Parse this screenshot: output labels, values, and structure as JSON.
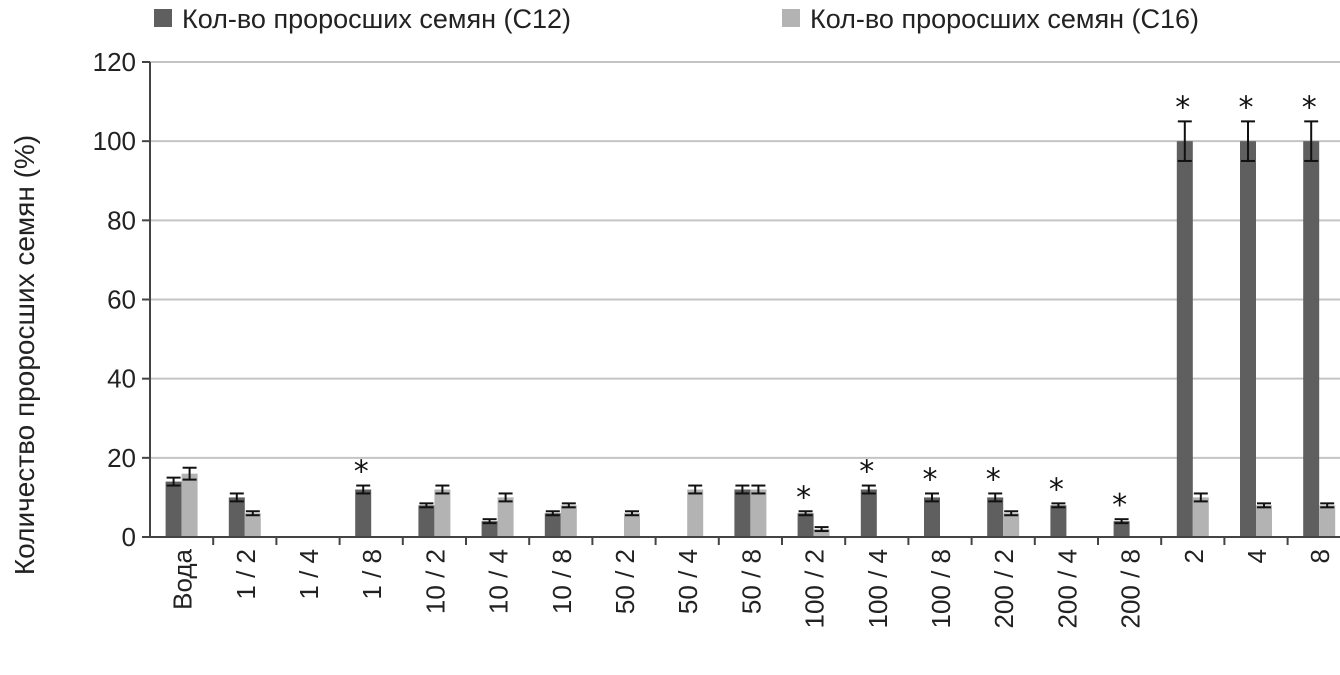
{
  "chart_data": {
    "type": "bar",
    "title": "",
    "xlabel": "",
    "ylabel": "Количество проросших семян (%)",
    "ylim": [
      0,
      120
    ],
    "yticks": [
      0,
      20,
      40,
      60,
      80,
      100,
      120
    ],
    "grid": true,
    "legend_position": "top",
    "categories": [
      "Вода",
      "1 / 2",
      "1 / 4",
      "1 / 8",
      "10 / 2",
      "10 / 4",
      "10 / 8",
      "50 / 2",
      "50 / 4",
      "50 / 8",
      "100 / 2",
      "100 / 4",
      "100 / 8",
      "200 / 2",
      "200 / 4",
      "200 / 8",
      "2",
      "4",
      "8"
    ],
    "series": [
      {
        "name": "Кол-во проросших семян (C12)",
        "color": "#5f5f5f",
        "values": [
          14,
          10,
          0,
          12,
          8,
          4,
          6,
          0,
          0,
          12,
          6,
          12,
          10,
          10,
          8,
          4,
          100,
          100,
          100
        ],
        "errors": [
          1,
          1,
          0,
          1,
          0.5,
          0.5,
          0.5,
          0,
          0,
          1,
          0.5,
          1,
          1,
          1,
          0.5,
          0.5,
          5,
          5,
          5
        ]
      },
      {
        "name": "Кол-во проросших семян (C16)",
        "color": "#b3b3b3",
        "values": [
          16,
          6,
          0,
          0,
          12,
          10,
          8,
          6,
          12,
          12,
          2,
          0,
          0,
          6,
          0,
          0,
          10,
          8,
          8
        ],
        "errors": [
          1.5,
          0.5,
          0,
          0,
          1,
          1,
          0.5,
          0.5,
          1,
          1,
          0.5,
          0,
          0,
          0.5,
          0,
          0,
          1,
          0.5,
          0.5
        ]
      }
    ],
    "annotations": [
      {
        "category": "1 / 8",
        "text": "*"
      },
      {
        "category": "100 / 2",
        "text": "*"
      },
      {
        "category": "100 / 4",
        "text": "*"
      },
      {
        "category": "100 / 8",
        "text": "*"
      },
      {
        "category": "200 / 2",
        "text": "*"
      },
      {
        "category": "200 / 4",
        "text": "*"
      },
      {
        "category": "200 / 8",
        "text": "*"
      },
      {
        "category": "2",
        "text": "*"
      },
      {
        "category": "4",
        "text": "*"
      },
      {
        "category": "8",
        "text": "*"
      }
    ]
  }
}
